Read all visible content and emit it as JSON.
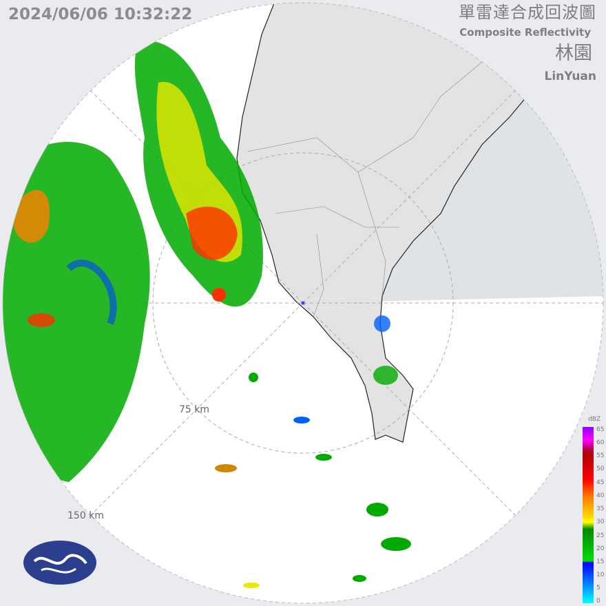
{
  "header": {
    "timestamp": "2024/06/06 10:32:22",
    "title_zh": "單雷達合成回波圖",
    "title_en": "Composite Reflectivity",
    "station_zh": "林園",
    "station_en": "LinYuan"
  },
  "range_rings": [
    {
      "label": "75 km"
    },
    {
      "label": "150 km"
    }
  ],
  "legend": {
    "unit": "dBZ",
    "ticks": [
      "65",
      "60",
      "55",
      "50",
      "45",
      "40",
      "35",
      "30",
      "25",
      "20",
      "15",
      "10",
      "5",
      "0"
    ]
  },
  "colors": {
    "land": "#e3e3e3",
    "sea": "#ffffff",
    "outside": "#e9ebee",
    "blocked_sector": "#d3d7db"
  },
  "icons": {
    "logo": "cwa-logo"
  }
}
